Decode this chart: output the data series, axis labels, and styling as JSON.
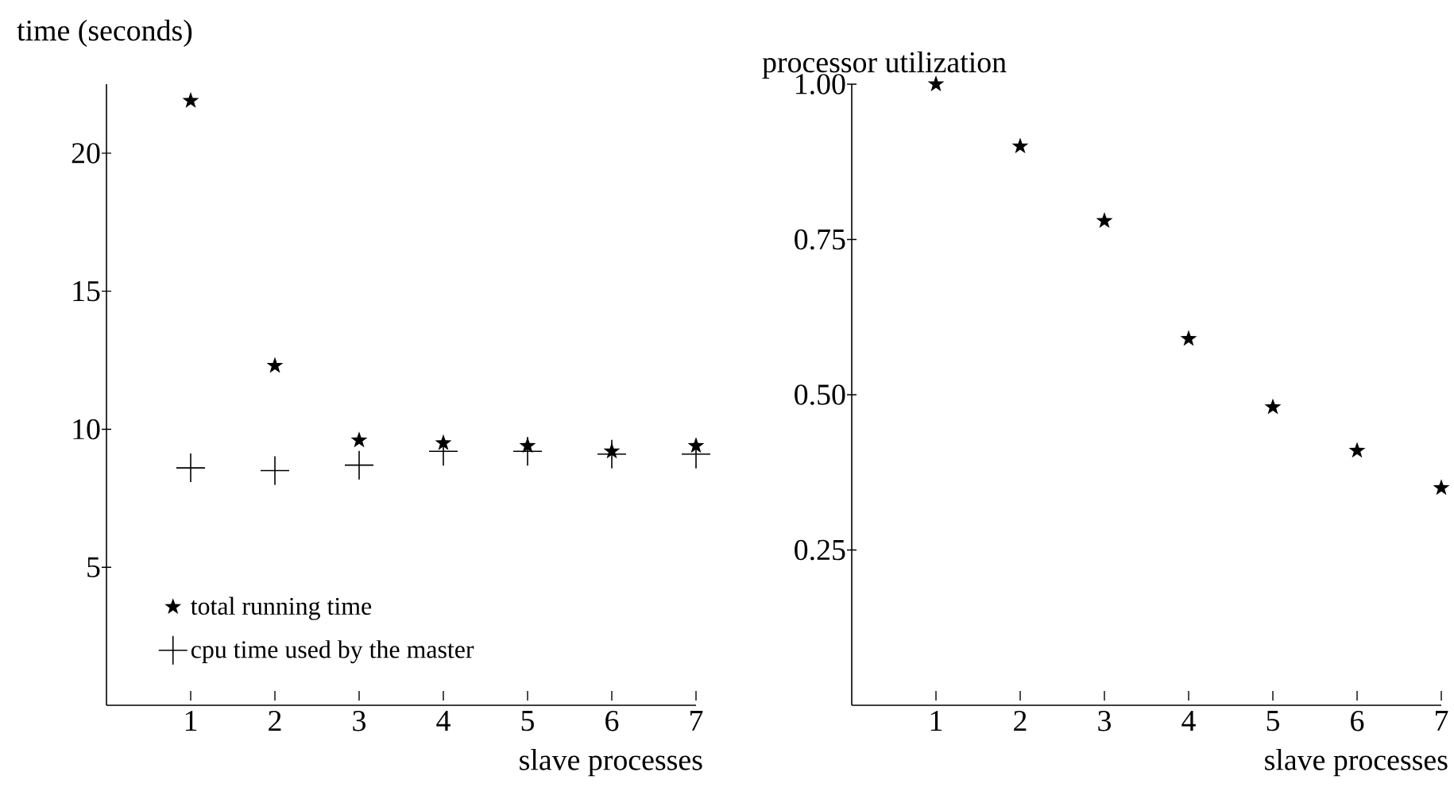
{
  "chart_data": [
    {
      "type": "scatter",
      "xlabel": "slave processes",
      "ylabel": "time (seconds)",
      "x": [
        1,
        2,
        3,
        4,
        5,
        6,
        7
      ],
      "xlim": [
        0,
        7
      ],
      "xticks": [
        1,
        2,
        3,
        4,
        5,
        6,
        7
      ],
      "ylim": [
        0,
        22.5
      ],
      "yticks": [
        5,
        10,
        15,
        20
      ],
      "legend": "bottom left",
      "series": [
        {
          "name": "total running time",
          "color": "#000000",
          "marker": "star",
          "values": [
            21.9,
            12.3,
            9.6,
            9.5,
            9.4,
            9.2,
            9.4
          ]
        },
        {
          "name": "cpu time used by the master",
          "color": "#000000",
          "marker": "cross",
          "values": [
            8.6,
            8.5,
            8.7,
            9.2,
            9.2,
            9.1,
            9.1
          ]
        }
      ]
    },
    {
      "type": "scatter",
      "xlabel": "slave processes",
      "ylabel": "processor utilization",
      "x": [
        1,
        2,
        3,
        4,
        5,
        6,
        7
      ],
      "xlim": [
        0,
        7
      ],
      "xticks": [
        1,
        2,
        3,
        4,
        5,
        6,
        7
      ],
      "ylim": [
        0,
        1
      ],
      "yticks": [
        {
          "value": 0.25,
          "label": "0.25"
        },
        {
          "value": 0.5,
          "label": "0.50"
        },
        {
          "value": 0.75,
          "label": "0.75"
        },
        {
          "value": 1,
          "label": "1.00"
        }
      ],
      "series": [
        {
          "color": "#000000",
          "marker": "star",
          "values": [
            1.0,
            0.9,
            0.78,
            0.59,
            0.48,
            0.41,
            0.35
          ]
        }
      ]
    }
  ]
}
